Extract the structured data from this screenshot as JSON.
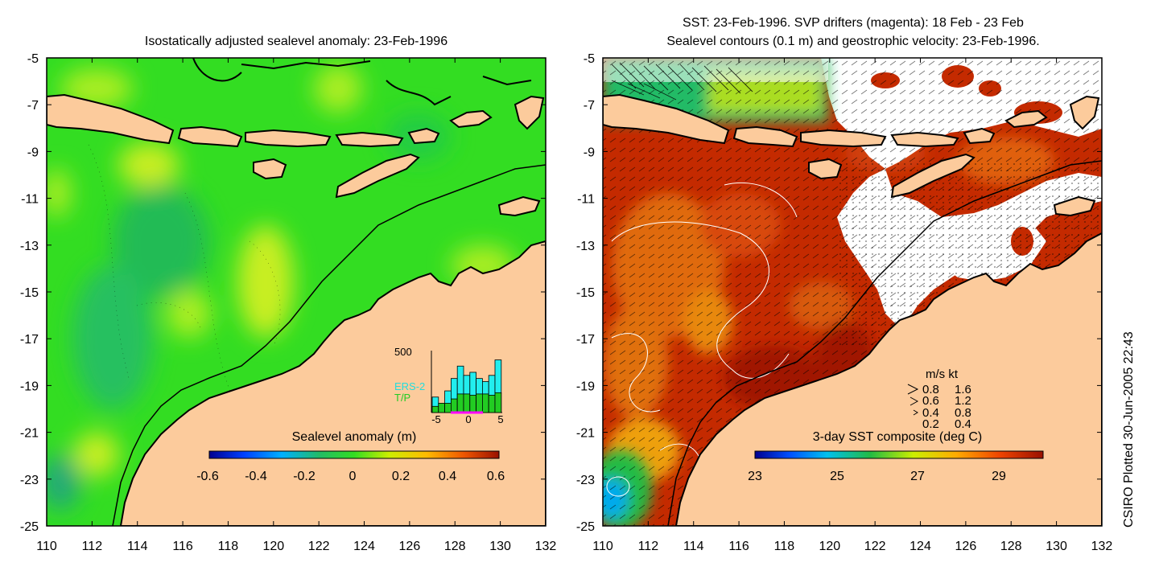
{
  "left_panel": {
    "title": "Isostatically adjusted sealevel anomaly: 23-Feb-1996",
    "colorbar": {
      "label": "Sealevel anomaly (m)",
      "ticks": [
        "-0.6",
        "-0.4",
        "-0.2",
        "0",
        "0.2",
        "0.4",
        "0.6"
      ],
      "range": [
        -0.6,
        0.6
      ]
    },
    "inset_histogram": {
      "ymax_label": "500",
      "legend": [
        "ERS-2",
        "T/P"
      ],
      "x_ticks": [
        "-5",
        "0",
        "5"
      ],
      "ers2_values": [
        0.25,
        0.15,
        0.35,
        0.55,
        0.75,
        0.6,
        0.65,
        0.55,
        0.5,
        0.6,
        0.85
      ],
      "tp_values": [
        0.1,
        0.15,
        0.15,
        0.22,
        0.3,
        0.3,
        0.28,
        0.3,
        0.3,
        0.28,
        0.32
      ]
    }
  },
  "right_panel": {
    "title_line1": "SST: 23-Feb-1996. SVP drifters (magenta): 18 Feb - 23 Feb",
    "title_line2": "Sealevel contours (0.1 m) and geostrophic velocity: 23-Feb-1996.",
    "colorbar": {
      "label": "3-day SST composite (deg C)",
      "ticks": [
        "23",
        "25",
        "27",
        "29"
      ],
      "range": [
        23,
        30
      ]
    },
    "velocity_key": {
      "header": "m/s  kt",
      "rows": [
        {
          "ms": "0.8",
          "kt": "1.6"
        },
        {
          "ms": "0.6",
          "kt": "1.2"
        },
        {
          "ms": "0.4",
          "kt": "0.8"
        },
        {
          "ms": "0.2",
          "kt": "0.4"
        }
      ]
    }
  },
  "axes": {
    "lat_labels": [
      "-5",
      "-7",
      "-9",
      "-11",
      "-13",
      "-15",
      "-17",
      "-19",
      "-21",
      "-23",
      "-25"
    ],
    "lon_labels": [
      "110",
      "112",
      "114",
      "116",
      "118",
      "120",
      "122",
      "124",
      "126",
      "128",
      "130",
      "132"
    ]
  },
  "credit": "CSIRO Plotted 30-Jun-2005 22:43",
  "colors": {
    "land": "#fccb9c",
    "sla_base": "#33dd22",
    "sla_high": "#aaee22",
    "sla_low": "#22bb55",
    "sst_warm": "#c42a00",
    "sst_hot": "#a01800",
    "sst_mid": "#e06a10",
    "coast": "#000000"
  }
}
